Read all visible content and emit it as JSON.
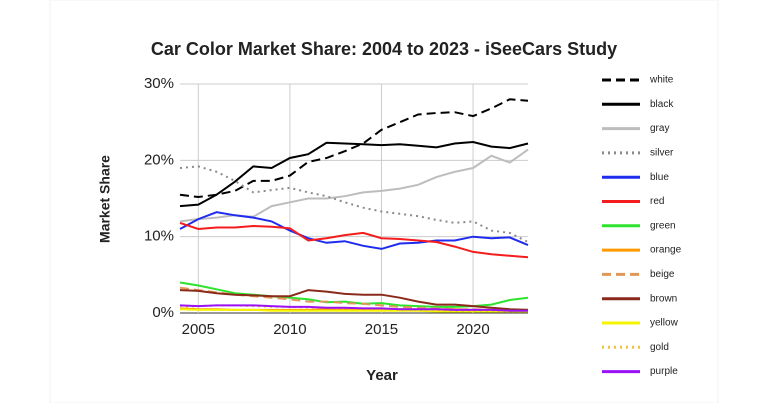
{
  "chart_data": {
    "type": "line",
    "title": "Car Color Market Share: 2004 to 2023 - iSeeCars Study",
    "x_label": "Year",
    "y_label": "Market Share",
    "x": [
      2004,
      2005,
      2006,
      2007,
      2008,
      2009,
      2010,
      2011,
      2012,
      2013,
      2014,
      2015,
      2016,
      2017,
      2018,
      2019,
      2020,
      2021,
      2022,
      2023
    ],
    "xlim": [
      2004,
      2023
    ],
    "xticks": [
      2005,
      2010,
      2015,
      2020
    ],
    "ylim": [
      0,
      30
    ],
    "yticks": [
      {
        "value": 0,
        "label": "0%"
      },
      {
        "value": 10,
        "label": "10%"
      },
      {
        "value": 20,
        "label": "20%"
      },
      {
        "value": 30,
        "label": "30%"
      }
    ],
    "grid": true,
    "legend": "right",
    "series": [
      {
        "name": "white",
        "color": "#000000",
        "dash": "dashed",
        "values": [
          15.5,
          15.2,
          15.5,
          16,
          17.3,
          17.3,
          18,
          19.8,
          20.3,
          21.2,
          22.2,
          24,
          25,
          26,
          26.2,
          26.3,
          25.8,
          26.8,
          28,
          27.8
        ]
      },
      {
        "name": "black",
        "color": "#000000",
        "dash": "solid",
        "values": [
          14,
          14.2,
          15.5,
          17.2,
          19.2,
          19,
          20.3,
          20.8,
          22.3,
          22.2,
          22.1,
          22,
          22.1,
          21.9,
          21.7,
          22.2,
          22.4,
          21.8,
          21.6,
          22.2
        ]
      },
      {
        "name": "gray",
        "color": "#bdbdbd",
        "dash": "solid",
        "values": [
          12,
          12.3,
          12.5,
          12.8,
          12.6,
          14,
          14.5,
          15,
          15,
          15.3,
          15.8,
          16,
          16.3,
          16.8,
          17.8,
          18.5,
          19,
          20.6,
          19.7,
          21.4
        ]
      },
      {
        "name": "silver",
        "color": "#8a8a8a",
        "dash": "dotted",
        "values": [
          19,
          19.2,
          18.5,
          17.3,
          15.8,
          16.1,
          16.4,
          15.8,
          15.3,
          14.5,
          13.8,
          13.3,
          13,
          12.7,
          12.2,
          11.8,
          12,
          10.8,
          10.5,
          9.3
        ]
      },
      {
        "name": "blue",
        "color": "#1f2cf0",
        "dash": "solid",
        "values": [
          11,
          12.3,
          13.2,
          12.8,
          12.5,
          12,
          10.8,
          9.8,
          9.2,
          9.4,
          8.8,
          8.4,
          9.1,
          9.2,
          9.5,
          9.5,
          10,
          9.8,
          9.9,
          8.9
        ]
      },
      {
        "name": "red",
        "color": "#f41c1c",
        "dash": "solid",
        "values": [
          11.8,
          11,
          11.2,
          11.2,
          11.4,
          11.3,
          11.1,
          9.5,
          9.8,
          10.2,
          10.5,
          9.8,
          9.7,
          9.5,
          9.3,
          8.7,
          8,
          7.7,
          7.5,
          7.3
        ]
      },
      {
        "name": "green",
        "color": "#2de32d",
        "dash": "solid",
        "values": [
          4,
          3.6,
          3.1,
          2.6,
          2.4,
          2.2,
          2,
          1.8,
          1.4,
          1.5,
          1.2,
          1.3,
          1,
          0.9,
          0.8,
          0.8,
          0.9,
          1.1,
          1.7,
          2
        ]
      },
      {
        "name": "orange",
        "color": "#ff9a00",
        "dash": "solid",
        "values": [
          0.6,
          0.5,
          0.5,
          0.4,
          0.4,
          0.4,
          0.4,
          0.4,
          0.5,
          0.5,
          0.5,
          0.5,
          0.5,
          0.5,
          0.5,
          0.5,
          0.4,
          0.4,
          0.4,
          0.4
        ]
      },
      {
        "name": "beige",
        "color": "#e0975a",
        "dash": "dashed",
        "values": [
          3.3,
          3,
          2.7,
          2.4,
          2.2,
          2,
          1.8,
          1.5,
          1.5,
          1.3,
          1.2,
          1,
          0.8,
          0.7,
          0.6,
          0.5,
          0.5,
          0.4,
          0.3,
          0.3
        ]
      },
      {
        "name": "brown",
        "color": "#8b2a1a",
        "dash": "solid",
        "values": [
          3,
          2.9,
          2.6,
          2.4,
          2.3,
          2.2,
          2.2,
          3,
          2.8,
          2.5,
          2.4,
          2.4,
          2,
          1.5,
          1.1,
          1.1,
          0.9,
          0.7,
          0.5,
          0.4
        ]
      },
      {
        "name": "yellow",
        "color": "#f5f500",
        "dash": "solid",
        "values": [
          0.5,
          0.4,
          0.4,
          0.4,
          0.4,
          0.3,
          0.3,
          0.3,
          0.3,
          0.3,
          0.3,
          0.3,
          0.3,
          0.3,
          0.2,
          0.2,
          0.2,
          0.2,
          0.2,
          0.2
        ]
      },
      {
        "name": "gold",
        "color": "#f2c23a",
        "dash": "dotted",
        "values": [
          0.7,
          0.9,
          1,
          1,
          0.9,
          0.8,
          0.8,
          0.7,
          0.7,
          0.6,
          0.6,
          0.5,
          0.5,
          0.4,
          0.4,
          0.3,
          0.3,
          0.3,
          0.2,
          0.2
        ]
      },
      {
        "name": "purple",
        "color": "#9a12f5",
        "dash": "solid",
        "values": [
          1,
          0.9,
          1,
          1,
          1,
          0.9,
          0.8,
          0.8,
          0.7,
          0.7,
          0.6,
          0.6,
          0.5,
          0.5,
          0.5,
          0.4,
          0.4,
          0.4,
          0.3,
          0.3
        ]
      }
    ]
  }
}
